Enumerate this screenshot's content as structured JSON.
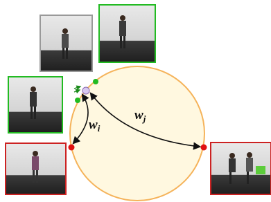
{
  "edge_labels": [
    {
      "symbol": "w",
      "subscript": "i"
    },
    {
      "symbol": "w",
      "subscript": "j"
    }
  ]
}
